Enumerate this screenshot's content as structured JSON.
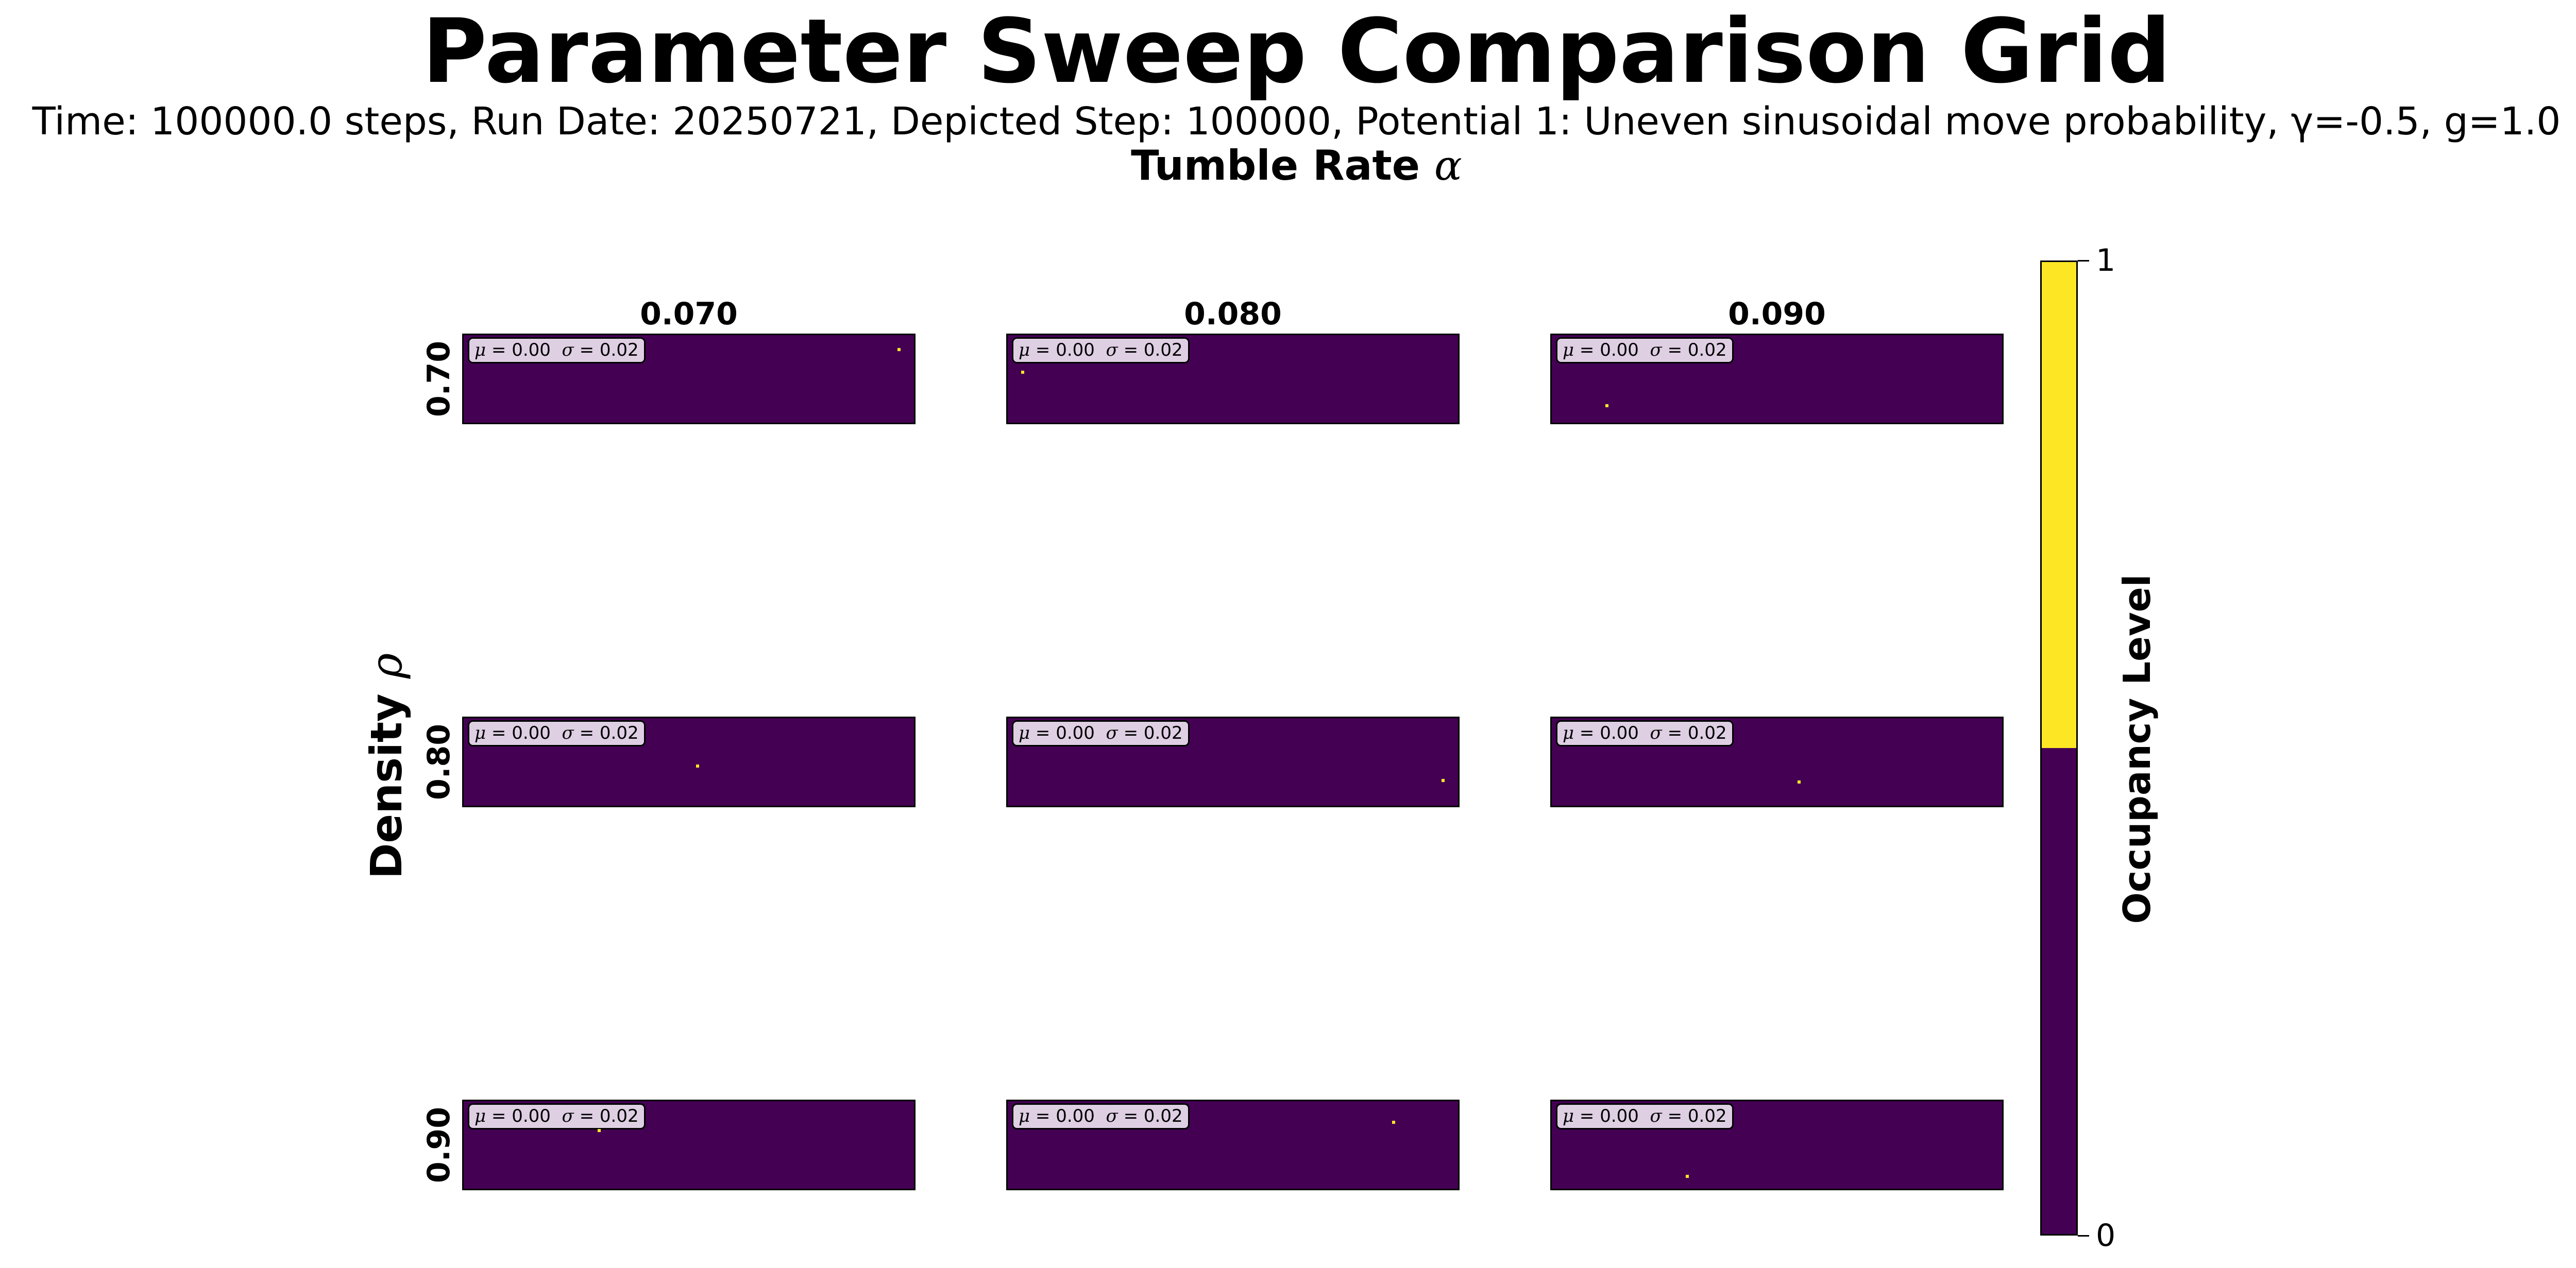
{
  "chart_data": {
    "type": "heatmap",
    "title": "Parameter Sweep Comparison Grid",
    "subtitle": "Time: 100000.0 steps, Run Date: 20250721, Depicted Step: 100000, Potential 1: Uneven sinusoidal move probability, γ=-0.5, g=1.0",
    "column_group_label": "Tumble Rate",
    "column_group_symbol": "α",
    "row_group_label": "Density",
    "row_group_symbol": "ρ",
    "columns": [
      "0.070",
      "0.080",
      "0.090"
    ],
    "rows": [
      "0.70",
      "0.80",
      "0.90"
    ],
    "panels": [
      {
        "row": "0.70",
        "col": "0.070",
        "mu": "0.00",
        "sigma": "0.02",
        "occupied_fraction_x": [
          0.97
        ],
        "occupied_fraction_y": [
          0.15
        ]
      },
      {
        "row": "0.70",
        "col": "0.080",
        "mu": "0.00",
        "sigma": "0.02",
        "occupied_fraction_x": [
          0.03
        ],
        "occupied_fraction_y": [
          0.42
        ]
      },
      {
        "row": "0.70",
        "col": "0.090",
        "mu": "0.00",
        "sigma": "0.02",
        "occupied_fraction_x": [
          0.12
        ],
        "occupied_fraction_y": [
          0.82
        ]
      },
      {
        "row": "0.80",
        "col": "0.070",
        "mu": "0.00",
        "sigma": "0.02",
        "occupied_fraction_x": [
          0.52
        ],
        "occupied_fraction_y": [
          0.55
        ]
      },
      {
        "row": "0.80",
        "col": "0.080",
        "mu": "0.00",
        "sigma": "0.02",
        "occupied_fraction_x": [
          0.97
        ],
        "occupied_fraction_y": [
          0.72
        ]
      },
      {
        "row": "0.80",
        "col": "0.090",
        "mu": "0.00",
        "sigma": "0.02",
        "occupied_fraction_x": [
          0.55
        ],
        "occupied_fraction_y": [
          0.74
        ]
      },
      {
        "row": "0.90",
        "col": "0.070",
        "mu": "0.00",
        "sigma": "0.02",
        "occupied_fraction_x": [
          0.3
        ],
        "occupied_fraction_y": [
          0.33
        ]
      },
      {
        "row": "0.90",
        "col": "0.080",
        "mu": "0.00",
        "sigma": "0.02",
        "occupied_fraction_x": [
          0.86
        ],
        "occupied_fraction_y": [
          0.23
        ]
      },
      {
        "row": "0.90",
        "col": "0.090",
        "mu": "0.00",
        "sigma": "0.02",
        "occupied_fraction_x": [
          0.3
        ],
        "occupied_fraction_y": [
          0.87
        ]
      }
    ],
    "colorbar": {
      "label": "Occupancy Level",
      "ticks": [
        "0",
        "1"
      ],
      "range": [
        0,
        1
      ],
      "split_value": 0.5,
      "low_color": "#440154",
      "high_color": "#fde725"
    },
    "background_color": "#440154",
    "occupied_color": "#fde725"
  }
}
